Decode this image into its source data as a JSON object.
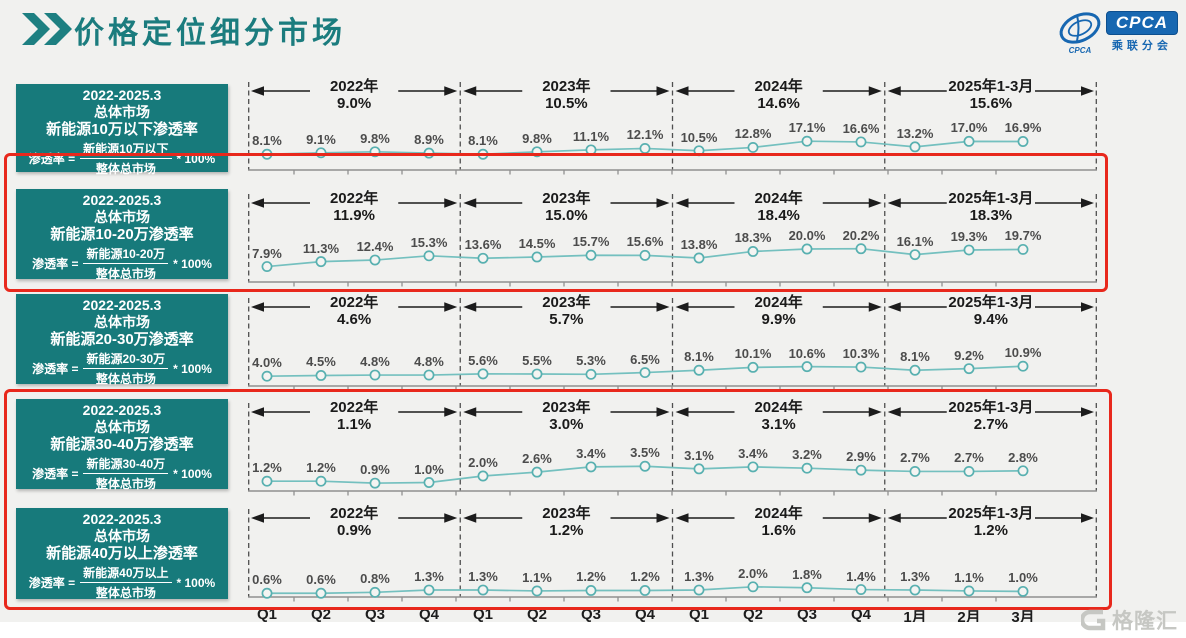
{
  "header": {
    "title": "价格定位细分市场"
  },
  "cpca_logo": {
    "abbr": "CPCA",
    "name": "乘联分会"
  },
  "gelonghui_logo": {
    "name": "格隆汇"
  },
  "colors": {
    "teal_box": "#177a7b",
    "line": "#74c0bf",
    "marker_stroke": "#58b0b0",
    "highlight_red": "#e8281c",
    "title_teal": "#1b7c7e",
    "cpca_blue": "#1767b1"
  },
  "x_axis_labels": [
    "Q1",
    "Q2",
    "Q3",
    "Q4",
    "Q1",
    "Q2",
    "Q3",
    "Q4",
    "Q1",
    "Q2",
    "Q3",
    "Q4",
    "1月",
    "2月",
    "3月"
  ],
  "chart_data": [
    {
      "type": "line",
      "name": "新能源10万以下渗透率",
      "categories": [
        "2022Q1",
        "2022Q2",
        "2022Q3",
        "2022Q4",
        "2023Q1",
        "2023Q2",
        "2023Q3",
        "2023Q4",
        "2024Q1",
        "2024Q2",
        "2024Q3",
        "2024Q4",
        "2025年1月",
        "2025年2月",
        "2025年3月"
      ],
      "values": [
        8.1,
        9.1,
        9.8,
        8.9,
        8.1,
        9.8,
        11.1,
        12.1,
        10.5,
        12.8,
        17.1,
        16.6,
        13.2,
        17.0,
        16.9
      ],
      "point_labels": [
        "8.1%",
        "9.1%",
        "9.8%",
        "8.9%",
        "8.1%",
        "9.8%",
        "11.1%",
        "12.1%",
        "10.5%",
        "12.8%",
        "17.1%",
        "16.6%",
        "13.2%",
        "17.0%",
        "16.9%"
      ],
      "year_summaries": [
        {
          "label": "2022年",
          "value": "9.0%"
        },
        {
          "label": "2023年",
          "value": "10.5%"
        },
        {
          "label": "2024年",
          "value": "14.6%"
        },
        {
          "label": "2025年1-3月",
          "value": "15.6%"
        }
      ],
      "info_box": {
        "period": "2022-2025.3",
        "market": "总体市场",
        "metric": "新能源10万以下渗透率",
        "formula_lhs": "渗透率 =",
        "formula_numerator": "新能源10万以下",
        "formula_denominator": "整体总市场",
        "formula_multiplier": "* 100%"
      },
      "highlighted": false
    },
    {
      "type": "line",
      "name": "新能源10-20万渗透率",
      "categories": [
        "2022Q1",
        "2022Q2",
        "2022Q3",
        "2022Q4",
        "2023Q1",
        "2023Q2",
        "2023Q3",
        "2023Q4",
        "2024Q1",
        "2024Q2",
        "2024Q3",
        "2024Q4",
        "2025年1月",
        "2025年2月",
        "2025年3月"
      ],
      "values": [
        7.9,
        11.3,
        12.4,
        15.3,
        13.6,
        14.5,
        15.7,
        15.6,
        13.8,
        18.3,
        20.0,
        20.2,
        16.1,
        19.3,
        19.7
      ],
      "point_labels": [
        "7.9%",
        "11.3%",
        "12.4%",
        "15.3%",
        "13.6%",
        "14.5%",
        "15.7%",
        "15.6%",
        "13.8%",
        "18.3%",
        "20.0%",
        "20.2%",
        "16.1%",
        "19.3%",
        "19.7%"
      ],
      "year_summaries": [
        {
          "label": "2022年",
          "value": "11.9%"
        },
        {
          "label": "2023年",
          "value": "15.0%"
        },
        {
          "label": "2024年",
          "value": "18.4%"
        },
        {
          "label": "2025年1-3月",
          "value": "18.3%"
        }
      ],
      "info_box": {
        "period": "2022-2025.3",
        "market": "总体市场",
        "metric": "新能源10-20万渗透率",
        "formula_lhs": "渗透率 =",
        "formula_numerator": "新能源10-20万",
        "formula_denominator": "整体总市场",
        "formula_multiplier": "* 100%"
      },
      "highlighted": true
    },
    {
      "type": "line",
      "name": "新能源20-30万渗透率",
      "categories": [
        "2022Q1",
        "2022Q2",
        "2022Q3",
        "2022Q4",
        "2023Q1",
        "2023Q2",
        "2023Q3",
        "2023Q4",
        "2024Q1",
        "2024Q2",
        "2024Q3",
        "2024Q4",
        "2025年1月",
        "2025年2月",
        "2025年3月"
      ],
      "values": [
        4.0,
        4.5,
        4.8,
        4.8,
        5.6,
        5.5,
        5.3,
        6.5,
        8.1,
        10.1,
        10.6,
        10.3,
        8.1,
        9.2,
        10.9
      ],
      "point_labels": [
        "4.0%",
        "4.5%",
        "4.8%",
        "4.8%",
        "5.6%",
        "5.5%",
        "5.3%",
        "6.5%",
        "8.1%",
        "10.1%",
        "10.6%",
        "10.3%",
        "8.1%",
        "9.2%",
        "10.9%"
      ],
      "year_summaries": [
        {
          "label": "2022年",
          "value": "4.6%"
        },
        {
          "label": "2023年",
          "value": "5.7%"
        },
        {
          "label": "2024年",
          "value": "9.9%"
        },
        {
          "label": "2025年1-3月",
          "value": "9.4%"
        }
      ],
      "info_box": {
        "period": "2022-2025.3",
        "market": "总体市场",
        "metric": "新能源20-30万渗透率",
        "formula_lhs": "渗透率 =",
        "formula_numerator": "新能源20-30万",
        "formula_denominator": "整体总市场",
        "formula_multiplier": "* 100%"
      },
      "highlighted": false
    },
    {
      "type": "line",
      "name": "新能源30-40万渗透率",
      "categories": [
        "2022Q1",
        "2022Q2",
        "2022Q3",
        "2022Q4",
        "2023Q1",
        "2023Q2",
        "2023Q3",
        "2023Q4",
        "2024Q1",
        "2024Q2",
        "2024Q3",
        "2024Q4",
        "2025年1月",
        "2025年2月",
        "2025年3月"
      ],
      "values": [
        1.2,
        1.2,
        0.9,
        1.0,
        2.0,
        2.6,
        3.4,
        3.5,
        3.1,
        3.4,
        3.2,
        2.9,
        2.7,
        2.7,
        2.8
      ],
      "point_labels": [
        "1.2%",
        "1.2%",
        "0.9%",
        "1.0%",
        "2.0%",
        "2.6%",
        "3.4%",
        "3.5%",
        "3.1%",
        "3.4%",
        "3.2%",
        "2.9%",
        "2.7%",
        "2.7%",
        "2.8%"
      ],
      "year_summaries": [
        {
          "label": "2022年",
          "value": "1.1%"
        },
        {
          "label": "2023年",
          "value": "3.0%"
        },
        {
          "label": "2024年",
          "value": "3.1%"
        },
        {
          "label": "2025年1-3月",
          "value": "2.7%"
        }
      ],
      "info_box": {
        "period": "2022-2025.3",
        "market": "总体市场",
        "metric": "新能源30-40万渗透率",
        "formula_lhs": "渗透率 =",
        "formula_numerator": "新能源30-40万",
        "formula_denominator": "整体总市场",
        "formula_multiplier": "* 100%"
      },
      "highlighted": true
    },
    {
      "type": "line",
      "name": "新能源40万以上渗透率",
      "categories": [
        "2022Q1",
        "2022Q2",
        "2022Q3",
        "2022Q4",
        "2023Q1",
        "2023Q2",
        "2023Q3",
        "2023Q4",
        "2024Q1",
        "2024Q2",
        "2024Q3",
        "2024Q4",
        "2025年1月",
        "2025年2月",
        "2025年3月"
      ],
      "values": [
        0.6,
        0.6,
        0.8,
        1.3,
        1.3,
        1.1,
        1.2,
        1.2,
        1.3,
        2.0,
        1.8,
        1.4,
        1.3,
        1.1,
        1.0
      ],
      "point_labels": [
        "0.6%",
        "0.6%",
        "0.8%",
        "1.3%",
        "1.3%",
        "1.1%",
        "1.2%",
        "1.2%",
        "1.3%",
        "2.0%",
        "1.8%",
        "1.4%",
        "1.3%",
        "1.1%",
        "1.0%"
      ],
      "year_summaries": [
        {
          "label": "2022年",
          "value": "0.9%"
        },
        {
          "label": "2023年",
          "value": "1.2%"
        },
        {
          "label": "2024年",
          "value": "1.6%"
        },
        {
          "label": "2025年1-3月",
          "value": "1.2%"
        }
      ],
      "info_box": {
        "period": "2022-2025.3",
        "market": "总体市场",
        "metric": "新能源40万以上渗透率",
        "formula_lhs": "渗透率 =",
        "formula_numerator": "新能源40万以上",
        "formula_denominator": "整体总市场",
        "formula_multiplier": "* 100%"
      },
      "highlighted": true
    }
  ]
}
